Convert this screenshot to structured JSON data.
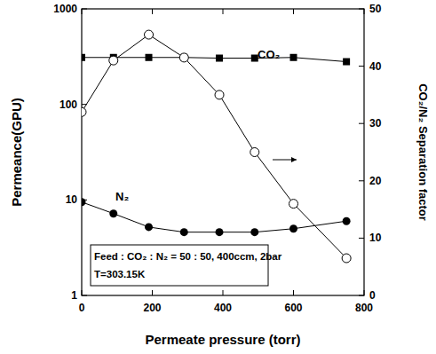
{
  "chart_data": {
    "type": "line",
    "x_label": "Permeate pressure (torr)",
    "y_label": "Permeance(GPU)",
    "y2_label": "CO₂/N₂ Separation factor",
    "annotations": [
      "Feed : CO₂ : N₂ = 50 : 50, 400ccm, 2bar",
      "T=303.15K"
    ],
    "x": [
      0,
      90,
      190,
      290,
      390,
      490,
      600,
      750
    ],
    "series": [
      {
        "name": "CO₂",
        "color": "#000000",
        "marker": "filled-square",
        "values": [
          310,
          310,
          310,
          310,
          305,
          305,
          310,
          280
        ]
      },
      {
        "name": "N₂",
        "color": "#000000",
        "marker": "filled-circle",
        "values": [
          9.5,
          7.2,
          5.2,
          4.6,
          4.6,
          4.6,
          5.0,
          6.0
        ]
      },
      {
        "color": "#000000",
        "marker": "open-circle",
        "axis": "y2",
        "values": [
          32,
          41,
          45.5,
          41.5,
          35,
          25,
          16,
          6.5
        ]
      }
    ],
    "xlim": [
      0,
      800
    ],
    "xticks": [
      0,
      200,
      400,
      600,
      800
    ],
    "ylim": [
      1,
      1000
    ],
    "yticks": [
      1,
      10,
      100,
      1000
    ],
    "log": "y",
    "y2lim": [
      0,
      50
    ],
    "y2ticks": [
      0,
      10,
      20,
      30,
      40,
      50
    ],
    "grid": false
  }
}
